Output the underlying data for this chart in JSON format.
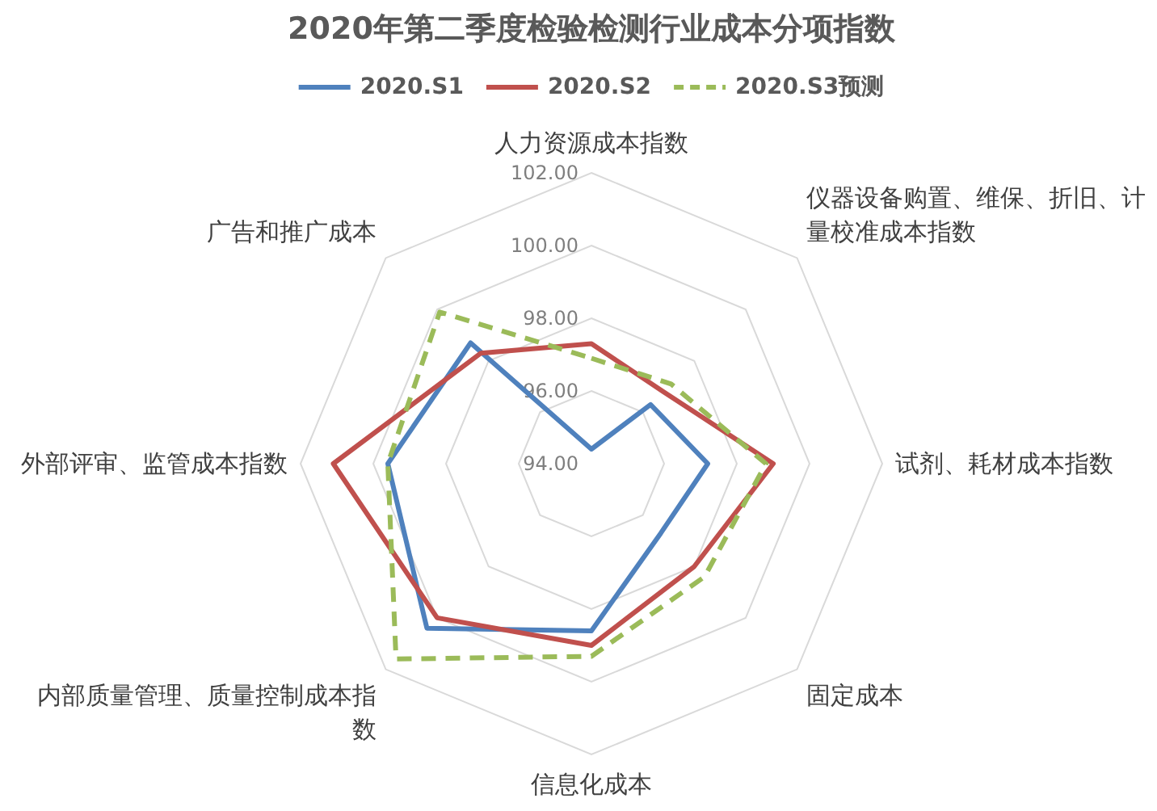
{
  "chart_data": {
    "type": "radar",
    "title": "2020年第二季度检验检测行业成本分项指数",
    "categories": [
      "人力资源成本指数",
      "仪器设备购置、维保、折旧、计量校准成本指数",
      "试剂、耗材成本指数",
      "固定成本",
      "信息化成本",
      "内部质量管理、质量控制成本指数",
      "外部评审、监管成本指数",
      "广告和推广成本"
    ],
    "series": [
      {
        "name": "2020.S1",
        "color": "#4f81bd",
        "values": [
          94.4,
          96.3,
          97.2,
          96.7,
          98.6,
          100.4,
          99.6,
          98.7
        ]
      },
      {
        "name": "2020.S2",
        "color": "#c0504d",
        "values": [
          97.3,
          96.8,
          99.0,
          98.0,
          99.0,
          100.0,
          101.1,
          98.3
        ]
      },
      {
        "name": "2020.S3预测",
        "color": "#9bbb59",
        "line_style": "dashed",
        "values": [
          96.9,
          97.1,
          98.8,
          98.4,
          99.3,
          101.6,
          99.6,
          99.9
        ]
      }
    ],
    "ylim": [
      94,
      102
    ],
    "yticks": [
      {
        "value": 94,
        "label": "94.00"
      },
      {
        "value": 96,
        "label": "96.00"
      },
      {
        "value": 98,
        "label": "98.00"
      },
      {
        "value": 100,
        "label": "100.00"
      },
      {
        "value": 102,
        "label": "102.00"
      }
    ],
    "grid": true,
    "legend": "top"
  }
}
